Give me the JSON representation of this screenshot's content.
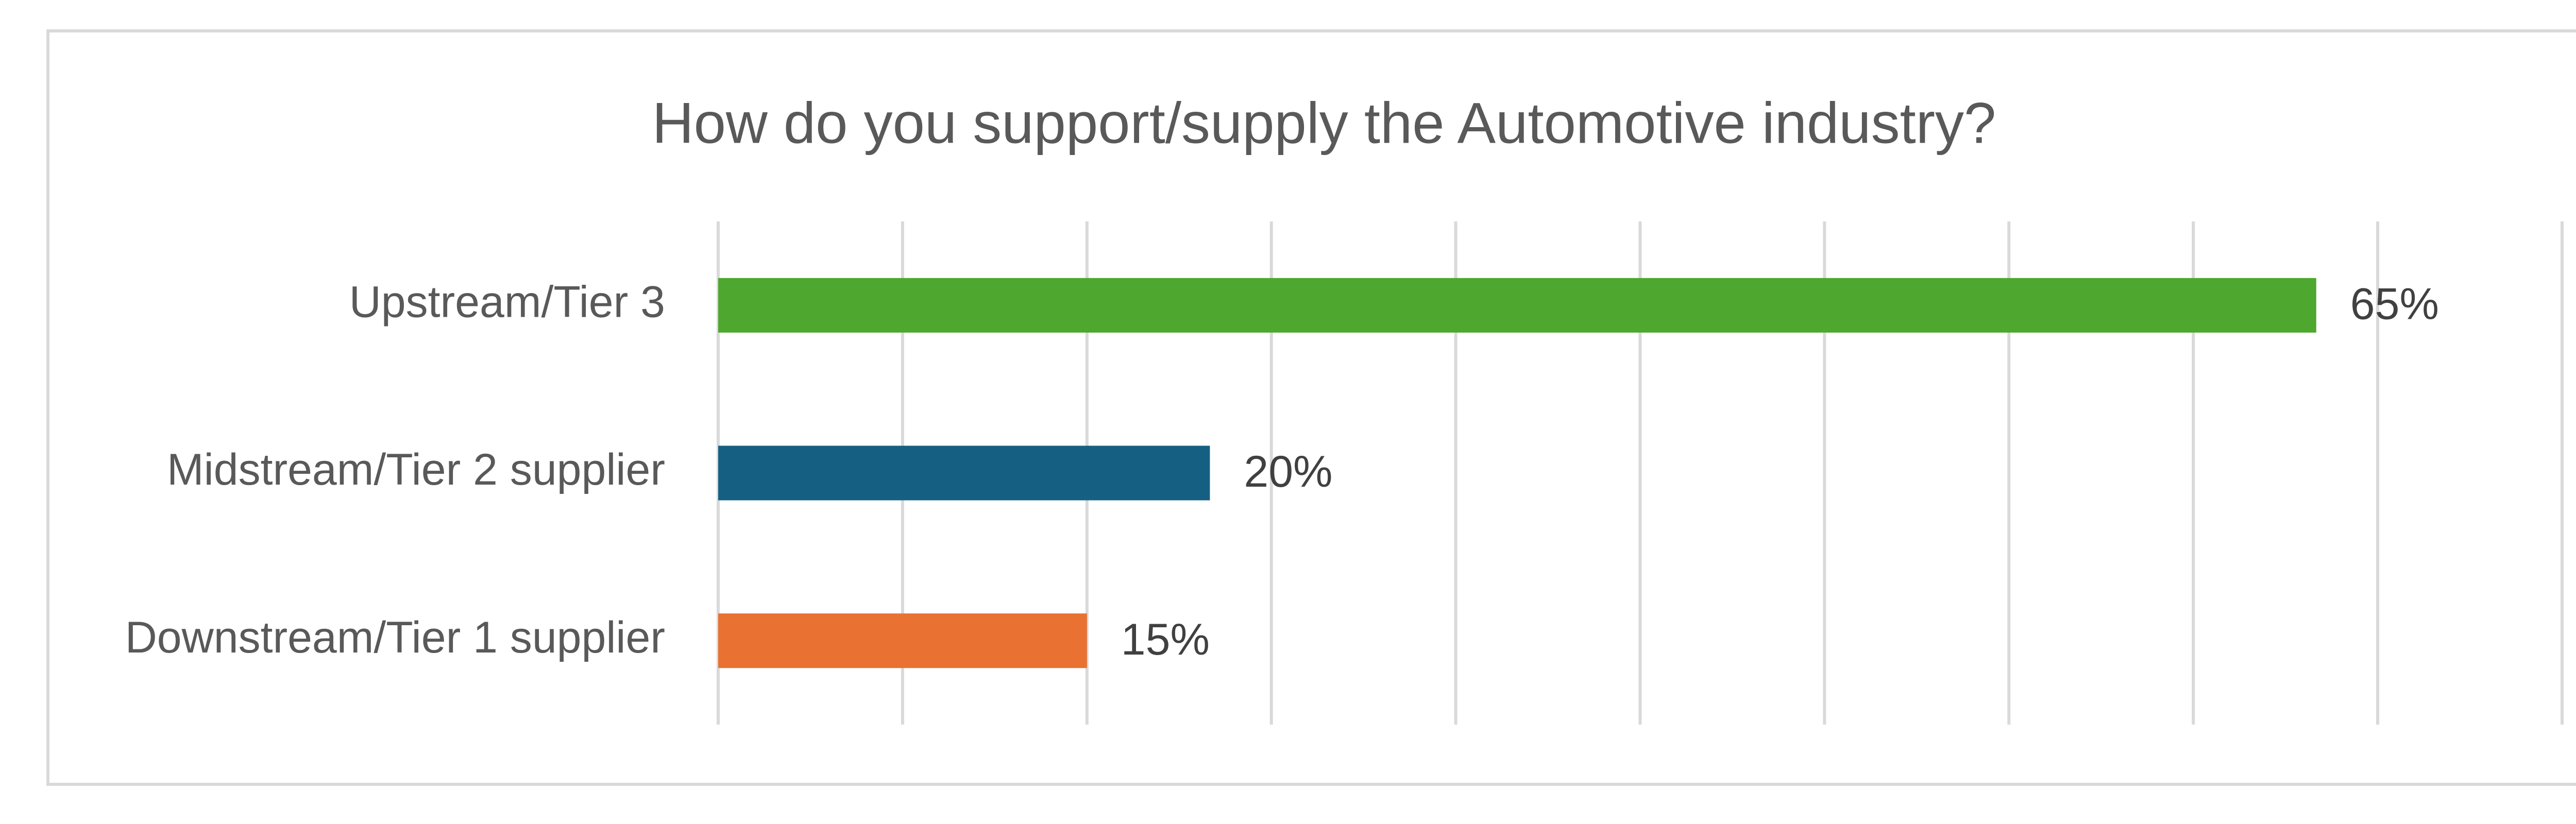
{
  "chart_data": {
    "type": "hbar",
    "title": "How do you support/supply the Automotive industry?",
    "categories": [
      "Upstream/Tier 3",
      "Midstream/Tier 2 supplier",
      "Downstream/Tier 1 supplier"
    ],
    "values": [
      65,
      20,
      15
    ],
    "value_labels": [
      "65%",
      "20%",
      "15%"
    ],
    "colors": [
      "#4ea72e",
      "#156082",
      "#e97132"
    ],
    "xlim": [
      0,
      75
    ],
    "xticks": [
      0,
      7.5,
      15,
      22.5,
      30,
      37.5,
      45,
      52.5,
      60,
      67.5,
      75
    ],
    "grid": true
  }
}
